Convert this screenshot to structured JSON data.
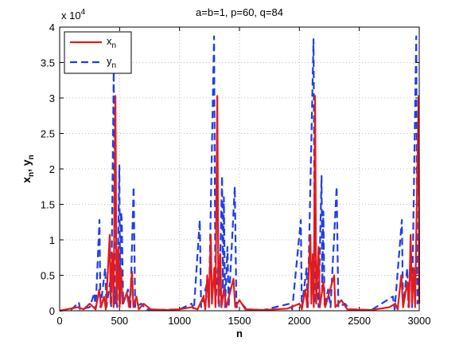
{
  "chart_data": {
    "type": "line",
    "title": "a=b=1, p=60, q=84",
    "xlabel": "n",
    "ylabel": [
      "x",
      "n",
      ", y",
      "n"
    ],
    "y_exponent": {
      "base": "x 10",
      "power": "4"
    },
    "xlim": [
      0,
      3000
    ],
    "xticks": [
      0,
      500,
      1000,
      1500,
      2000,
      2500,
      3000
    ],
    "ylim": [
      0,
      4
    ],
    "yticks": [
      0,
      0.5,
      1,
      1.5,
      2,
      2.5,
      3,
      3.5,
      4
    ],
    "grid": true,
    "legend": "upper left",
    "series": [
      {
        "name": "x",
        "subscript": "n",
        "color": "#e41a1c",
        "dash": "solid",
        "x": [
          0,
          150,
          200,
          250,
          300,
          330,
          345,
          370,
          385,
          418,
          425,
          440,
          450,
          465,
          475,
          490,
          500,
          512,
          525,
          560,
          580,
          604,
          615,
          640,
          660,
          700,
          760,
          900,
          1000,
          1100,
          1150,
          1200,
          1215,
          1232,
          1245,
          1261,
          1270,
          1290,
          1300,
          1315,
          1325,
          1340,
          1350,
          1370,
          1390,
          1450,
          1465,
          1500,
          1550,
          1700,
          1900,
          2000,
          2020,
          2050,
          2065,
          2092,
          2100,
          2112,
          2120,
          2131,
          2140,
          2160,
          2170,
          2200,
          2215,
          2290,
          2300,
          2350,
          2400,
          2600,
          2750,
          2800,
          2820,
          2850,
          2865,
          2900,
          2915,
          2928,
          2940,
          2955,
          2965,
          2995,
          3000
        ],
        "values": [
          0,
          0.05,
          0.02,
          0.1,
          0.02,
          0.3,
          0.05,
          0.2,
          0.02,
          1.07,
          0.1,
          0.8,
          0.05,
          3.03,
          0.1,
          0.9,
          0.05,
          0.6,
          0.1,
          0.25,
          0.05,
          0.55,
          0.05,
          0.2,
          0.02,
          0.1,
          0.02,
          0.01,
          0.02,
          0.05,
          0.02,
          0.2,
          0.02,
          0.5,
          0.05,
          1.07,
          0.1,
          0.6,
          0.05,
          3.03,
          0.1,
          0.8,
          0.05,
          0.3,
          0.05,
          0.45,
          0.05,
          0.15,
          0.02,
          0.01,
          0.03,
          0.1,
          0.02,
          0.3,
          0.05,
          1.07,
          0.1,
          0.8,
          0.05,
          3.03,
          0.1,
          0.9,
          0.05,
          0.4,
          0.05,
          0.5,
          0.05,
          0.15,
          0.02,
          0.01,
          0.05,
          0.1,
          0.02,
          0.5,
          0.05,
          0.4,
          0.05,
          1.07,
          0.1,
          0.6,
          0.05,
          3.03,
          0.1
        ]
      },
      {
        "name": "y",
        "subscript": "n",
        "color": "#1f3fe6",
        "dash": "dashed",
        "x": [
          0,
          100,
          160,
          170,
          250,
          290,
          300,
          332,
          340,
          380,
          390,
          420,
          430,
          451,
          460,
          470,
          480,
          498,
          505,
          512,
          518,
          530,
          570,
          590,
          617,
          630,
          680,
          720,
          800,
          1000,
          1100,
          1120,
          1169,
          1180,
          1230,
          1245,
          1288,
          1300,
          1320,
          1330,
          1355,
          1362,
          1370,
          1380,
          1400,
          1410,
          1461,
          1475,
          1520,
          1560,
          1700,
          1920,
          1940,
          2012,
          2020,
          2060,
          2070,
          2118,
          2130,
          2150,
          2160,
          2185,
          2190,
          2200,
          2210,
          2240,
          2260,
          2311,
          2325,
          2380,
          2420,
          2600,
          2780,
          2795,
          2855,
          2865,
          2900,
          2910,
          2930,
          2940,
          2975,
          2985,
          3000
        ],
        "values": [
          0,
          0.02,
          0.12,
          0.02,
          0.05,
          0.25,
          0.02,
          1.28,
          0.05,
          0.6,
          0.05,
          0.4,
          0.05,
          3.37,
          0.1,
          0.3,
          0.05,
          2.05,
          0.1,
          1.4,
          1.28,
          0.1,
          0.3,
          0.05,
          1.75,
          0.05,
          0.1,
          0.02,
          0.01,
          0.02,
          0.1,
          0.02,
          1.28,
          0.05,
          0.4,
          0.05,
          3.87,
          0.1,
          0.6,
          0.05,
          1.9,
          0.3,
          1.6,
          0.05,
          0.9,
          0.05,
          1.75,
          0.05,
          0.1,
          0.02,
          0.01,
          0.1,
          0.02,
          1.28,
          0.05,
          0.6,
          0.05,
          3.83,
          0.1,
          0.5,
          0.05,
          1.9,
          0.3,
          1.4,
          0.05,
          0.3,
          0.05,
          1.75,
          0.05,
          0.1,
          0.02,
          0.01,
          0.2,
          0.02,
          1.28,
          0.05,
          0.6,
          0.05,
          0.9,
          0.05,
          3.87,
          0.1,
          0.5
        ]
      }
    ]
  }
}
